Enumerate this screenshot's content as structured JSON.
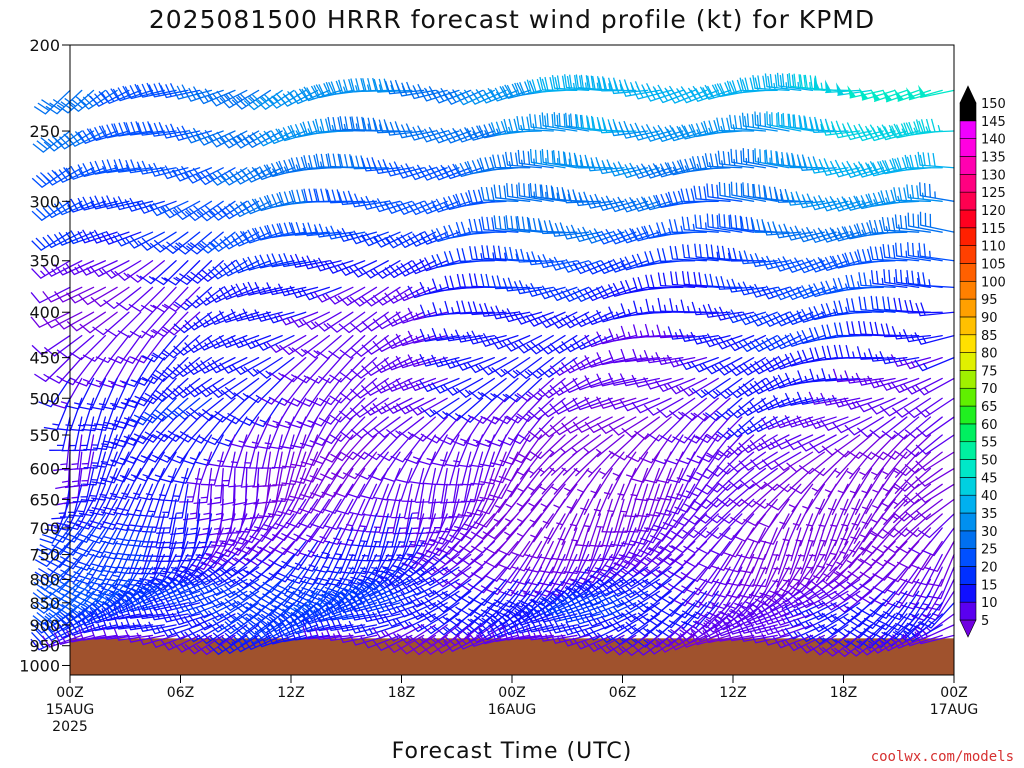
{
  "chart_data": {
    "type": "wind-barb time-height profile",
    "title": "2025081500 HRRR forecast wind profile (kt) for KPMD",
    "xlabel": "Forecast Time (UTC)",
    "credit": "coolwx.com/models",
    "units": "kt",
    "pressure_levels": [
      225,
      250,
      275,
      300,
      325,
      350,
      375,
      400,
      425,
      450,
      475,
      500,
      525,
      550,
      575,
      600,
      625,
      650,
      675,
      700,
      725,
      750,
      775,
      800,
      825,
      850,
      875,
      900,
      925
    ],
    "yticks": [
      "200",
      "250",
      "300",
      "350",
      "400",
      "450",
      "500",
      "550",
      "600",
      "650",
      "700",
      "750",
      "800",
      "850",
      "900",
      "950",
      "1000"
    ],
    "ytick_values": [
      200,
      250,
      300,
      350,
      400,
      450,
      500,
      550,
      600,
      650,
      700,
      750,
      800,
      850,
      900,
      950,
      1000
    ],
    "xticks": [
      {
        "hour": 0,
        "line1": "00Z",
        "line2": "15AUG",
        "line3": "2025"
      },
      {
        "hour": 6,
        "line1": "06Z",
        "line2": "",
        "line3": ""
      },
      {
        "hour": 12,
        "line1": "12Z",
        "line2": "",
        "line3": ""
      },
      {
        "hour": 18,
        "line1": "18Z",
        "line2": "",
        "line3": ""
      },
      {
        "hour": 24,
        "line1": "00Z",
        "line2": "16AUG",
        "line3": ""
      },
      {
        "hour": 30,
        "line1": "06Z",
        "line2": "",
        "line3": ""
      },
      {
        "hour": 36,
        "line1": "12Z",
        "line2": "",
        "line3": ""
      },
      {
        "hour": 42,
        "line1": "18Z",
        "line2": "",
        "line3": ""
      },
      {
        "hour": 48,
        "line1": "00Z",
        "line2": "17AUG",
        "line3": ""
      }
    ],
    "xlim_hours": [
      0,
      48
    ],
    "ylim_hpa": [
      200,
      1025
    ],
    "y_scale": "log-pressure",
    "surface_pressure_hpa": 932,
    "surface_color": "#a0522d",
    "hours_start": 0,
    "hours_end": 48,
    "direction_profiles": [
      {
        "p": 225,
        "h": [
          0,
          24,
          48
        ],
        "dir": [
          240,
          260,
          265
        ]
      },
      {
        "p": 250,
        "h": [
          0,
          24,
          48
        ],
        "dir": [
          245,
          265,
          268
        ]
      },
      {
        "p": 275,
        "h": [
          0,
          24,
          48
        ],
        "dir": [
          245,
          265,
          268
        ]
      },
      {
        "p": 300,
        "h": [
          0,
          24,
          48
        ],
        "dir": [
          240,
          265,
          268
        ]
      },
      {
        "p": 325,
        "h": [
          0,
          24,
          48
        ],
        "dir": [
          235,
          262,
          268
        ]
      },
      {
        "p": 350,
        "h": [
          0,
          24,
          48
        ],
        "dir": [
          230,
          260,
          265
        ]
      },
      {
        "p": 375,
        "h": [
          0,
          24,
          48
        ],
        "dir": [
          230,
          258,
          265
        ]
      },
      {
        "p": 400,
        "h": [
          0,
          24,
          48
        ],
        "dir": [
          230,
          255,
          262
        ]
      },
      {
        "p": 425,
        "h": [
          0,
          24,
          48
        ],
        "dir": [
          225,
          250,
          260
        ]
      },
      {
        "p": 450,
        "h": [
          0,
          24,
          48
        ],
        "dir": [
          220,
          245,
          258
        ]
      },
      {
        "p": 475,
        "h": [
          0,
          24,
          48
        ],
        "dir": [
          215,
          240,
          255
        ]
      },
      {
        "p": 500,
        "h": [
          0,
          24,
          48
        ],
        "dir": [
          210,
          235,
          250
        ]
      },
      {
        "p": 525,
        "h": [
          0,
          24,
          48
        ],
        "dir": [
          205,
          225,
          245
        ]
      },
      {
        "p": 550,
        "h": [
          0,
          24,
          48
        ],
        "dir": [
          200,
          215,
          240
        ]
      },
      {
        "p": 575,
        "h": [
          0,
          24,
          48
        ],
        "dir": [
          195,
          210,
          235
        ]
      },
      {
        "p": 600,
        "h": [
          0,
          24,
          48
        ],
        "dir": [
          190,
          205,
          230
        ]
      },
      {
        "p": 625,
        "h": [
          0,
          24,
          48
        ],
        "dir": [
          190,
          205,
          225
        ]
      },
      {
        "p": 650,
        "h": [
          0,
          24,
          48
        ],
        "dir": [
          195,
          205,
          220
        ]
      },
      {
        "p": 675,
        "h": [
          0,
          24,
          48
        ],
        "dir": [
          200,
          210,
          215
        ]
      },
      {
        "p": 700,
        "h": [
          0,
          24,
          48
        ],
        "dir": [
          205,
          210,
          210
        ]
      },
      {
        "p": 725,
        "h": [
          0,
          24,
          48
        ],
        "dir": [
          210,
          215,
          210
        ]
      },
      {
        "p": 750,
        "h": [
          0,
          24,
          48
        ],
        "dir": [
          215,
          220,
          210
        ]
      },
      {
        "p": 775,
        "h": [
          0,
          24,
          48
        ],
        "dir": [
          225,
          225,
          215
        ]
      },
      {
        "p": 800,
        "h": [
          0,
          24,
          48
        ],
        "dir": [
          235,
          230,
          220
        ]
      },
      {
        "p": 825,
        "h": [
          0,
          24,
          48
        ],
        "dir": [
          240,
          235,
          225
        ]
      },
      {
        "p": 850,
        "h": [
          0,
          24,
          48
        ],
        "dir": [
          245,
          240,
          230
        ]
      },
      {
        "p": 875,
        "h": [
          0,
          24,
          48
        ],
        "dir": [
          250,
          245,
          235
        ]
      },
      {
        "p": 900,
        "h": [
          0,
          24,
          48
        ],
        "dir": [
          250,
          245,
          240
        ]
      },
      {
        "p": 925,
        "h": [
          0,
          24,
          48
        ],
        "dir": [
          250,
          250,
          245
        ]
      }
    ],
    "speed_profiles": [
      {
        "p": 225,
        "h": [
          0,
          24,
          48
        ],
        "kt": [
          30,
          38,
          50
        ]
      },
      {
        "p": 250,
        "h": [
          0,
          24,
          48
        ],
        "kt": [
          30,
          35,
          45
        ]
      },
      {
        "p": 275,
        "h": [
          0,
          24,
          48
        ],
        "kt": [
          28,
          32,
          40
        ]
      },
      {
        "p": 300,
        "h": [
          0,
          24,
          48
        ],
        "kt": [
          26,
          30,
          35
        ]
      },
      {
        "p": 325,
        "h": [
          0,
          24,
          48
        ],
        "kt": [
          22,
          28,
          32
        ]
      },
      {
        "p": 350,
        "h": [
          0,
          24,
          48
        ],
        "kt": [
          15,
          22,
          28
        ]
      },
      {
        "p": 375,
        "h": [
          0,
          24,
          48
        ],
        "kt": [
          12,
          18,
          25
        ]
      },
      {
        "p": 400,
        "h": [
          0,
          24,
          48
        ],
        "kt": [
          12,
          16,
          22
        ]
      },
      {
        "p": 425,
        "h": [
          0,
          24,
          48
        ],
        "kt": [
          14,
          15,
          20
        ]
      },
      {
        "p": 450,
        "h": [
          0,
          24,
          48
        ],
        "kt": [
          16,
          14,
          18
        ]
      },
      {
        "p": 475,
        "h": [
          0,
          24,
          48
        ],
        "kt": [
          18,
          13,
          16
        ]
      },
      {
        "p": 500,
        "h": [
          0,
          24,
          48
        ],
        "kt": [
          20,
          12,
          15
        ]
      },
      {
        "p": 525,
        "h": [
          0,
          24,
          48
        ],
        "kt": [
          18,
          10,
          14
        ]
      },
      {
        "p": 550,
        "h": [
          0,
          24,
          48
        ],
        "kt": [
          16,
          9,
          12
        ]
      },
      {
        "p": 575,
        "h": [
          0,
          24,
          48
        ],
        "kt": [
          15,
          8,
          10
        ]
      },
      {
        "p": 600,
        "h": [
          0,
          24,
          48
        ],
        "kt": [
          15,
          8,
          9
        ]
      },
      {
        "p": 625,
        "h": [
          0,
          24,
          48
        ],
        "kt": [
          16,
          8,
          8
        ]
      },
      {
        "p": 650,
        "h": [
          0,
          24,
          48
        ],
        "kt": [
          18,
          9,
          8
        ]
      },
      {
        "p": 675,
        "h": [
          0,
          24,
          48
        ],
        "kt": [
          20,
          10,
          8
        ]
      },
      {
        "p": 700,
        "h": [
          0,
          24,
          48
        ],
        "kt": [
          20,
          11,
          8
        ]
      },
      {
        "p": 725,
        "h": [
          0,
          24,
          48
        ],
        "kt": [
          20,
          12,
          7
        ]
      },
      {
        "p": 750,
        "h": [
          0,
          24,
          48
        ],
        "kt": [
          22,
          14,
          7
        ]
      },
      {
        "p": 775,
        "h": [
          0,
          24,
          48
        ],
        "kt": [
          24,
          16,
          8
        ]
      },
      {
        "p": 800,
        "h": [
          0,
          24,
          48
        ],
        "kt": [
          26,
          18,
          10
        ]
      },
      {
        "p": 825,
        "h": [
          0,
          24,
          48
        ],
        "kt": [
          26,
          20,
          12
        ]
      },
      {
        "p": 850,
        "h": [
          0,
          24,
          48
        ],
        "kt": [
          24,
          20,
          14
        ]
      },
      {
        "p": 875,
        "h": [
          0,
          24,
          48
        ],
        "kt": [
          22,
          18,
          14
        ]
      },
      {
        "p": 900,
        "h": [
          0,
          24,
          48
        ],
        "kt": [
          20,
          16,
          14
        ]
      },
      {
        "p": 925,
        "h": [
          0,
          24,
          48
        ],
        "kt": [
          15,
          12,
          12
        ]
      }
    ],
    "colorbar": {
      "levels": [
        5,
        10,
        15,
        20,
        25,
        30,
        35,
        40,
        45,
        50,
        55,
        60,
        65,
        70,
        75,
        80,
        85,
        90,
        95,
        100,
        105,
        110,
        115,
        120,
        125,
        130,
        135,
        140,
        145,
        150
      ],
      "colors": [
        "#7000e0",
        "#5a00f0",
        "#1010ff",
        "#0030ff",
        "#0050ff",
        "#0070f0",
        "#0090f0",
        "#00b0f0",
        "#00d0e0",
        "#00e8c8",
        "#00f0a0",
        "#00f060",
        "#20f020",
        "#60f000",
        "#a0f000",
        "#e0f000",
        "#ffe000",
        "#ffc000",
        "#ffa000",
        "#ff8000",
        "#ff6000",
        "#ff4000",
        "#ff2000",
        "#ff0020",
        "#ff0050",
        "#ff0080",
        "#ff00b0",
        "#ff00e0",
        "#f000ff",
        "#000000"
      ]
    }
  }
}
